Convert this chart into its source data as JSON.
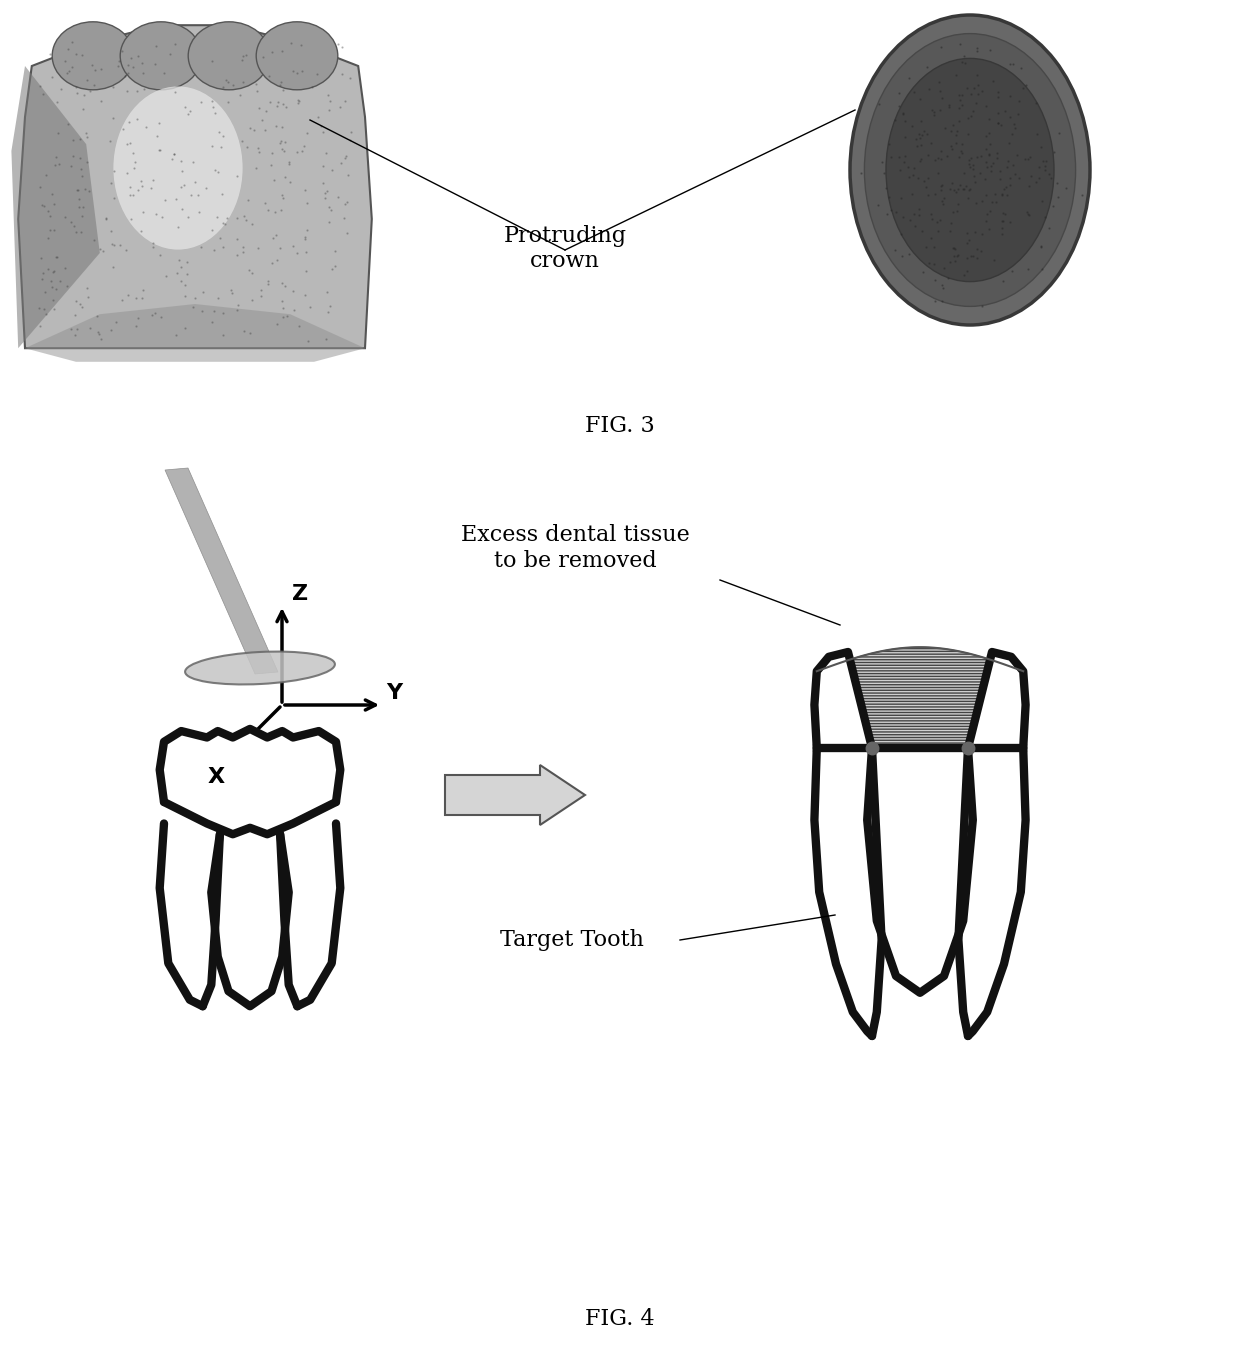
{
  "fig3_label": "FIG. 3",
  "fig4_label": "FIG. 4",
  "protruding_crown_label": "Protruding\ncrown",
  "excess_tissue_label": "Excess dental tissue\nto be removed",
  "target_tooth_label": "Target Tooth",
  "bg_color": "#ffffff",
  "tooth_outline_color": "#111111",
  "label_fontsize": 16,
  "fig_label_fontsize": 16
}
